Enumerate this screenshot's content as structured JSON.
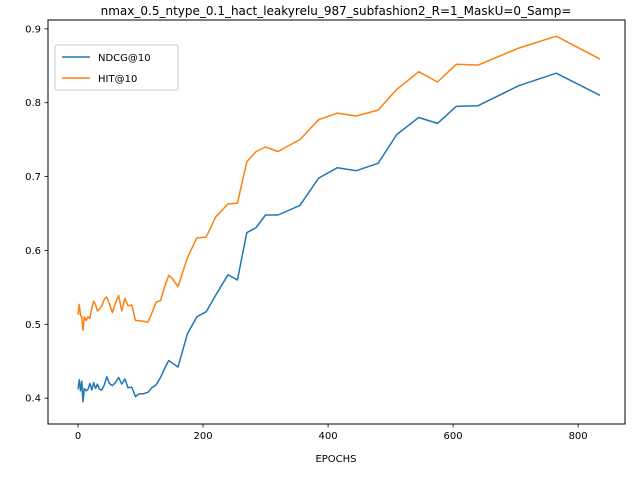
{
  "chart_data": {
    "type": "line",
    "title": "nmax_0.5_ntype_0.1_hact_leakyrelu_987_subfashion2_R=1_MaskU=0_Samp=",
    "xlabel": "EPOCHS",
    "ylabel": "",
    "xlim": [
      -48,
      875
    ],
    "ylim": [
      0.365,
      0.912
    ],
    "xticks": [
      0,
      200,
      400,
      600,
      800
    ],
    "yticks": [
      0.4,
      0.5,
      0.6,
      0.7,
      0.8,
      0.9
    ],
    "grid": false,
    "legend_position": "upper-left",
    "series": [
      {
        "name": "NDCG@10",
        "color": "#1f77b4",
        "x": [
          0,
          2,
          4,
          6,
          8,
          10,
          13,
          16,
          19,
          22,
          25,
          28,
          31,
          34,
          38,
          42,
          46,
          50,
          55,
          60,
          65,
          70,
          75,
          80,
          86,
          92,
          98,
          105,
          112,
          118,
          125,
          132,
          139,
          145,
          150,
          160,
          175,
          190,
          205,
          220,
          240,
          255,
          270,
          285,
          300,
          320,
          355,
          385,
          415,
          445,
          480,
          510,
          545,
          575,
          605,
          640,
          705,
          765,
          835
        ],
        "y": [
          0.412,
          0.425,
          0.41,
          0.423,
          0.395,
          0.413,
          0.41,
          0.412,
          0.42,
          0.411,
          0.421,
          0.413,
          0.419,
          0.412,
          0.411,
          0.418,
          0.429,
          0.42,
          0.417,
          0.421,
          0.428,
          0.419,
          0.426,
          0.414,
          0.415,
          0.402,
          0.406,
          0.406,
          0.408,
          0.414,
          0.418,
          0.428,
          0.441,
          0.451,
          0.448,
          0.442,
          0.487,
          0.51,
          0.517,
          0.539,
          0.567,
          0.56,
          0.624,
          0.631,
          0.648,
          0.648,
          0.661,
          0.698,
          0.712,
          0.708,
          0.718,
          0.757,
          0.78,
          0.772,
          0.795,
          0.796,
          0.823,
          0.84,
          0.81
        ]
      },
      {
        "name": "HIT@10",
        "color": "#ff7f0e",
        "x": [
          0,
          2,
          4,
          6,
          8,
          10,
          13,
          16,
          19,
          22,
          25,
          28,
          31,
          34,
          38,
          42,
          46,
          50,
          55,
          60,
          65,
          70,
          75,
          80,
          86,
          92,
          98,
          105,
          112,
          118,
          125,
          132,
          139,
          145,
          150,
          160,
          175,
          190,
          205,
          220,
          240,
          255,
          270,
          285,
          300,
          320,
          355,
          385,
          415,
          445,
          480,
          510,
          545,
          575,
          605,
          640,
          705,
          765,
          835
        ],
        "y": [
          0.513,
          0.527,
          0.512,
          0.51,
          0.492,
          0.51,
          0.505,
          0.51,
          0.508,
          0.522,
          0.531,
          0.527,
          0.518,
          0.52,
          0.525,
          0.534,
          0.537,
          0.528,
          0.516,
          0.529,
          0.539,
          0.518,
          0.535,
          0.525,
          0.526,
          0.505,
          0.505,
          0.504,
          0.503,
          0.515,
          0.53,
          0.532,
          0.552,
          0.566,
          0.563,
          0.551,
          0.59,
          0.617,
          0.618,
          0.645,
          0.663,
          0.664,
          0.72,
          0.734,
          0.74,
          0.734,
          0.75,
          0.777,
          0.786,
          0.782,
          0.79,
          0.818,
          0.842,
          0.828,
          0.852,
          0.851,
          0.874,
          0.89,
          0.859
        ]
      }
    ]
  }
}
